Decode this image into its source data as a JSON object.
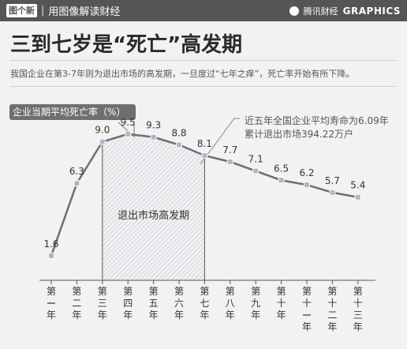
{
  "header": {
    "logo_text": "图个新",
    "section_text": "用图像解读财经",
    "partner_text": "腾讯财经",
    "graphics_text": "GRAPHICS"
  },
  "headline": "三到七岁是“死亡”高发期",
  "subtitle": "我国企业在第3-7年则为退出市场的高发期，一旦度过“七年之痒”，死亡率开始有所下降。",
  "annotation": {
    "line1": "近五年全国企业平均寿命为6.09年",
    "line2": "累计退出市场394.22万户"
  },
  "colors": {
    "background": "#f2f2f2",
    "line": "#6e6e6e",
    "marker": "#c9a8cf",
    "label_box": "#6f6f6f"
  },
  "chart_data": {
    "type": "line",
    "title": "企业当期平均死亡率（%）",
    "categories": [
      "第一年",
      "第二年",
      "第三年",
      "第四年",
      "第五年",
      "第六年",
      "第七年",
      "第八年",
      "第九年",
      "第十年",
      "第十一年",
      "第十二年",
      "第十三年"
    ],
    "values": [
      1.6,
      6.3,
      9.0,
      9.5,
      9.3,
      8.8,
      8.1,
      7.7,
      7.1,
      6.5,
      6.2,
      5.7,
      5.4
    ],
    "value_labels": [
      "1.6",
      "6.3",
      "9.0",
      "9.5",
      "9.3",
      "8.8",
      "8.1",
      "7.7",
      "7.1",
      "6.5",
      "6.2",
      "5.7",
      "5.4"
    ],
    "highlight": {
      "from_index": 2,
      "to_index": 6,
      "label": "退出市场高发期"
    },
    "ylim": [
      0,
      10
    ],
    "grid": false,
    "legend": "none"
  }
}
